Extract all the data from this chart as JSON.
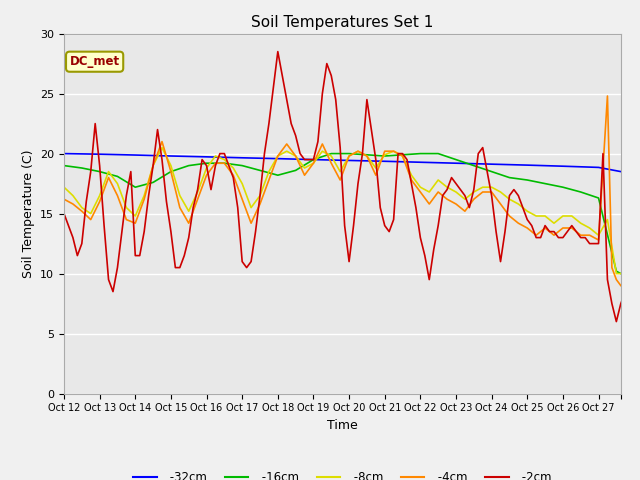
{
  "title": "Soil Temperatures Set 1",
  "xlabel": "Time",
  "ylabel": "Soil Temperature (C)",
  "ylim": [
    0,
    30
  ],
  "fig_facecolor": "#f0f0f0",
  "axes_facecolor": "#e8e8e8",
  "legend_label": "DC_met",
  "series": {
    "-32cm": {
      "color": "#0000ff",
      "linewidth": 1.2,
      "data": [
        [
          0,
          20.0
        ],
        [
          24,
          19.95
        ],
        [
          48,
          19.88
        ],
        [
          72,
          19.8
        ],
        [
          96,
          19.73
        ],
        [
          120,
          19.65
        ],
        [
          144,
          19.58
        ],
        [
          168,
          19.5
        ],
        [
          192,
          19.43
        ],
        [
          216,
          19.36
        ],
        [
          240,
          19.28
        ],
        [
          264,
          19.2
        ],
        [
          288,
          19.12
        ],
        [
          312,
          19.04
        ],
        [
          336,
          18.95
        ],
        [
          360,
          18.85
        ],
        [
          375,
          18.5
        ]
      ]
    },
    "-16cm": {
      "color": "#00bb00",
      "linewidth": 1.2,
      "data": [
        [
          0,
          19.0
        ],
        [
          12,
          18.8
        ],
        [
          24,
          18.5
        ],
        [
          36,
          18.1
        ],
        [
          48,
          17.2
        ],
        [
          60,
          17.6
        ],
        [
          72,
          18.5
        ],
        [
          84,
          19.0
        ],
        [
          96,
          19.2
        ],
        [
          108,
          19.2
        ],
        [
          120,
          19.0
        ],
        [
          132,
          18.6
        ],
        [
          144,
          18.2
        ],
        [
          156,
          18.6
        ],
        [
          168,
          19.5
        ],
        [
          180,
          20.0
        ],
        [
          192,
          20.0
        ],
        [
          204,
          19.9
        ],
        [
          216,
          19.8
        ],
        [
          228,
          19.9
        ],
        [
          240,
          20.0
        ],
        [
          252,
          20.0
        ],
        [
          264,
          19.5
        ],
        [
          276,
          19.0
        ],
        [
          288,
          18.5
        ],
        [
          300,
          18.0
        ],
        [
          312,
          17.8
        ],
        [
          324,
          17.5
        ],
        [
          336,
          17.2
        ],
        [
          348,
          16.8
        ],
        [
          360,
          16.3
        ],
        [
          372,
          10.2
        ],
        [
          375,
          10.0
        ]
      ]
    },
    "-8cm": {
      "color": "#dddd00",
      "linewidth": 1.2,
      "data": [
        [
          0,
          17.2
        ],
        [
          6,
          16.5
        ],
        [
          12,
          15.5
        ],
        [
          18,
          15.0
        ],
        [
          24,
          16.5
        ],
        [
          30,
          18.5
        ],
        [
          36,
          17.5
        ],
        [
          42,
          15.5
        ],
        [
          48,
          14.8
        ],
        [
          54,
          16.5
        ],
        [
          60,
          19.0
        ],
        [
          66,
          20.5
        ],
        [
          72,
          19.0
        ],
        [
          78,
          16.5
        ],
        [
          84,
          15.2
        ],
        [
          90,
          16.8
        ],
        [
          96,
          18.8
        ],
        [
          102,
          19.8
        ],
        [
          108,
          19.5
        ],
        [
          114,
          18.8
        ],
        [
          120,
          17.5
        ],
        [
          126,
          15.5
        ],
        [
          132,
          16.5
        ],
        [
          138,
          18.5
        ],
        [
          144,
          19.8
        ],
        [
          150,
          20.2
        ],
        [
          156,
          19.8
        ],
        [
          162,
          18.8
        ],
        [
          168,
          19.2
        ],
        [
          174,
          20.2
        ],
        [
          180,
          19.8
        ],
        [
          186,
          18.5
        ],
        [
          192,
          19.8
        ],
        [
          198,
          20.2
        ],
        [
          204,
          19.8
        ],
        [
          210,
          18.8
        ],
        [
          216,
          19.9
        ],
        [
          222,
          20.2
        ],
        [
          228,
          19.8
        ],
        [
          234,
          18.2
        ],
        [
          240,
          17.2
        ],
        [
          246,
          16.8
        ],
        [
          252,
          17.8
        ],
        [
          258,
          17.2
        ],
        [
          264,
          16.8
        ],
        [
          270,
          16.2
        ],
        [
          276,
          16.8
        ],
        [
          282,
          17.2
        ],
        [
          288,
          17.2
        ],
        [
          294,
          16.8
        ],
        [
          300,
          16.2
        ],
        [
          306,
          15.8
        ],
        [
          312,
          15.2
        ],
        [
          318,
          14.8
        ],
        [
          324,
          14.8
        ],
        [
          330,
          14.2
        ],
        [
          336,
          14.8
        ],
        [
          342,
          14.8
        ],
        [
          348,
          14.2
        ],
        [
          354,
          13.8
        ],
        [
          360,
          13.2
        ],
        [
          366,
          14.5
        ],
        [
          372,
          10.0
        ],
        [
          375,
          10.0
        ]
      ]
    },
    "-4cm": {
      "color": "#ff8800",
      "linewidth": 1.2,
      "data": [
        [
          0,
          16.2
        ],
        [
          6,
          15.8
        ],
        [
          12,
          15.2
        ],
        [
          18,
          14.5
        ],
        [
          24,
          16.0
        ],
        [
          30,
          18.0
        ],
        [
          36,
          16.5
        ],
        [
          42,
          14.5
        ],
        [
          48,
          14.2
        ],
        [
          54,
          16.2
        ],
        [
          60,
          19.0
        ],
        [
          66,
          21.0
        ],
        [
          72,
          18.5
        ],
        [
          78,
          15.5
        ],
        [
          84,
          14.2
        ],
        [
          90,
          16.2
        ],
        [
          96,
          18.2
        ],
        [
          102,
          19.2
        ],
        [
          108,
          19.2
        ],
        [
          114,
          18.2
        ],
        [
          120,
          16.2
        ],
        [
          126,
          14.2
        ],
        [
          132,
          15.8
        ],
        [
          138,
          17.8
        ],
        [
          144,
          19.8
        ],
        [
          150,
          20.8
        ],
        [
          156,
          19.8
        ],
        [
          162,
          18.2
        ],
        [
          168,
          19.2
        ],
        [
          174,
          20.8
        ],
        [
          180,
          19.2
        ],
        [
          186,
          17.8
        ],
        [
          192,
          19.8
        ],
        [
          198,
          20.2
        ],
        [
          204,
          19.8
        ],
        [
          210,
          18.2
        ],
        [
          216,
          20.2
        ],
        [
          222,
          20.2
        ],
        [
          228,
          19.8
        ],
        [
          234,
          17.8
        ],
        [
          240,
          16.8
        ],
        [
          246,
          15.8
        ],
        [
          252,
          16.8
        ],
        [
          258,
          16.2
        ],
        [
          264,
          15.8
        ],
        [
          270,
          15.2
        ],
        [
          276,
          16.2
        ],
        [
          282,
          16.8
        ],
        [
          288,
          16.8
        ],
        [
          294,
          15.8
        ],
        [
          300,
          14.8
        ],
        [
          306,
          14.2
        ],
        [
          312,
          13.8
        ],
        [
          318,
          13.2
        ],
        [
          324,
          13.8
        ],
        [
          330,
          13.2
        ],
        [
          336,
          13.8
        ],
        [
          342,
          13.8
        ],
        [
          348,
          13.2
        ],
        [
          354,
          13.2
        ],
        [
          360,
          12.8
        ],
        [
          366,
          24.8
        ],
        [
          369,
          10.5
        ],
        [
          372,
          9.5
        ],
        [
          375,
          9.0
        ]
      ]
    },
    "-2cm": {
      "color": "#cc0000",
      "linewidth": 1.2,
      "data": [
        [
          0,
          15.0
        ],
        [
          3,
          14.0
        ],
        [
          6,
          13.0
        ],
        [
          9,
          11.5
        ],
        [
          12,
          12.5
        ],
        [
          15,
          16.0
        ],
        [
          18,
          18.5
        ],
        [
          21,
          22.5
        ],
        [
          24,
          19.0
        ],
        [
          27,
          14.0
        ],
        [
          30,
          9.5
        ],
        [
          33,
          8.5
        ],
        [
          36,
          10.5
        ],
        [
          39,
          13.5
        ],
        [
          42,
          16.5
        ],
        [
          45,
          18.5
        ],
        [
          48,
          11.5
        ],
        [
          51,
          11.5
        ],
        [
          54,
          13.5
        ],
        [
          57,
          16.5
        ],
        [
          60,
          19.0
        ],
        [
          63,
          22.0
        ],
        [
          66,
          19.5
        ],
        [
          69,
          16.0
        ],
        [
          72,
          13.5
        ],
        [
          75,
          10.5
        ],
        [
          78,
          10.5
        ],
        [
          81,
          11.5
        ],
        [
          84,
          13.0
        ],
        [
          87,
          15.5
        ],
        [
          90,
          17.0
        ],
        [
          93,
          19.5
        ],
        [
          96,
          19.0
        ],
        [
          99,
          17.0
        ],
        [
          102,
          19.0
        ],
        [
          105,
          20.0
        ],
        [
          108,
          20.0
        ],
        [
          111,
          19.0
        ],
        [
          114,
          18.0
        ],
        [
          117,
          15.5
        ],
        [
          120,
          11.0
        ],
        [
          123,
          10.5
        ],
        [
          126,
          11.0
        ],
        [
          129,
          13.5
        ],
        [
          132,
          16.5
        ],
        [
          135,
          20.0
        ],
        [
          138,
          22.5
        ],
        [
          141,
          25.5
        ],
        [
          144,
          28.5
        ],
        [
          147,
          26.5
        ],
        [
          150,
          24.5
        ],
        [
          153,
          22.5
        ],
        [
          156,
          21.5
        ],
        [
          159,
          20.0
        ],
        [
          162,
          19.5
        ],
        [
          165,
          19.5
        ],
        [
          168,
          19.5
        ],
        [
          171,
          21.0
        ],
        [
          174,
          25.0
        ],
        [
          177,
          27.5
        ],
        [
          180,
          26.5
        ],
        [
          183,
          24.5
        ],
        [
          186,
          20.5
        ],
        [
          189,
          14.0
        ],
        [
          192,
          11.0
        ],
        [
          195,
          14.0
        ],
        [
          198,
          17.5
        ],
        [
          201,
          20.0
        ],
        [
          204,
          24.5
        ],
        [
          207,
          22.0
        ],
        [
          210,
          19.5
        ],
        [
          213,
          15.5
        ],
        [
          216,
          14.0
        ],
        [
          219,
          13.5
        ],
        [
          222,
          14.5
        ],
        [
          225,
          20.0
        ],
        [
          228,
          20.0
        ],
        [
          231,
          19.5
        ],
        [
          234,
          17.5
        ],
        [
          237,
          15.5
        ],
        [
          240,
          13.0
        ],
        [
          243,
          11.5
        ],
        [
          246,
          9.5
        ],
        [
          249,
          12.0
        ],
        [
          252,
          14.0
        ],
        [
          255,
          16.5
        ],
        [
          258,
          17.0
        ],
        [
          261,
          18.0
        ],
        [
          264,
          17.5
        ],
        [
          267,
          17.0
        ],
        [
          270,
          16.5
        ],
        [
          273,
          15.5
        ],
        [
          276,
          17.0
        ],
        [
          279,
          20.0
        ],
        [
          282,
          20.5
        ],
        [
          285,
          18.5
        ],
        [
          288,
          16.5
        ],
        [
          291,
          13.5
        ],
        [
          294,
          11.0
        ],
        [
          297,
          13.5
        ],
        [
          300,
          16.5
        ],
        [
          303,
          17.0
        ],
        [
          306,
          16.5
        ],
        [
          309,
          15.5
        ],
        [
          312,
          14.5
        ],
        [
          315,
          14.0
        ],
        [
          318,
          13.0
        ],
        [
          321,
          13.0
        ],
        [
          324,
          14.0
        ],
        [
          327,
          13.5
        ],
        [
          330,
          13.5
        ],
        [
          333,
          13.0
        ],
        [
          336,
          13.0
        ],
        [
          339,
          13.5
        ],
        [
          342,
          14.0
        ],
        [
          345,
          13.5
        ],
        [
          348,
          13.0
        ],
        [
          351,
          13.0
        ],
        [
          354,
          12.5
        ],
        [
          357,
          12.5
        ],
        [
          360,
          12.5
        ],
        [
          363,
          20.0
        ],
        [
          366,
          9.5
        ],
        [
          369,
          7.5
        ],
        [
          372,
          6.0
        ],
        [
          375,
          7.5
        ],
        [
          378,
          8.5
        ]
      ]
    }
  },
  "xtick_positions": [
    0,
    24,
    48,
    72,
    96,
    120,
    144,
    168,
    192,
    216,
    240,
    264,
    288,
    312,
    336,
    360,
    375
  ],
  "xtick_labels": [
    "Oct 12",
    "Oct 13",
    "Oct 14",
    "Oct 15",
    "Oct 16",
    "Oct 17",
    "Oct 18",
    "Oct 19",
    "Oct 20",
    "Oct 21",
    "Oct 22",
    "Oct 23",
    "Oct 24",
    "Oct 25",
    "Oct 26",
    "Oct 27",
    ""
  ],
  "ytick_positions": [
    0,
    5,
    10,
    15,
    20,
    25,
    30
  ],
  "grid_color": "white",
  "grid_linewidth": 1.0
}
